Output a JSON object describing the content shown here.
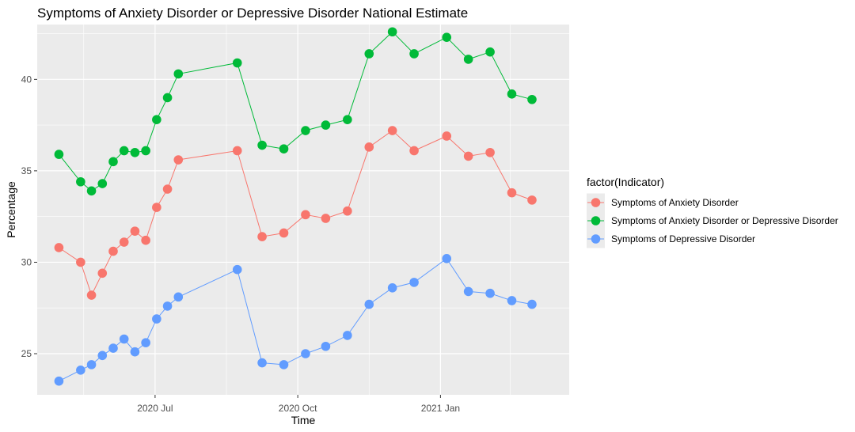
{
  "chart_data": {
    "type": "line",
    "title": "Symptoms of Anxiety Disorder or Depressive Disorder National Estimate",
    "xlabel": "Time",
    "ylabel": "Percentage",
    "x_ticks": [
      {
        "date": "2020-07-01",
        "label": "2020 Jul"
      },
      {
        "date": "2020-10-01",
        "label": "2020 Oct"
      },
      {
        "date": "2021-01-01",
        "label": "2021 Jan"
      }
    ],
    "x_minor_ticks": [
      "2020-05-16",
      "2020-08-16",
      "2020-11-16",
      "2021-02-15"
    ],
    "xlim": [
      "2020-04-16",
      "2021-03-25"
    ],
    "y_ticks": [
      25,
      30,
      35,
      40
    ],
    "ylim": [
      22.75,
      43.0
    ],
    "grid": true,
    "legend": {
      "title": "factor(Indicator)",
      "position": "right"
    },
    "x": [
      "2020-04-30",
      "2020-05-14",
      "2020-05-21",
      "2020-05-28",
      "2020-06-04",
      "2020-06-11",
      "2020-06-18",
      "2020-06-25",
      "2020-07-02",
      "2020-07-09",
      "2020-07-16",
      "2020-08-23",
      "2020-09-08",
      "2020-09-22",
      "2020-10-06",
      "2020-10-19",
      "2020-11-02",
      "2020-11-16",
      "2020-12-01",
      "2020-12-15",
      "2021-01-05",
      "2021-01-19",
      "2021-02-02",
      "2021-02-16",
      "2021-03-01"
    ],
    "series": [
      {
        "name": "Symptoms of Anxiety Disorder",
        "color": "#f8766d",
        "values": [
          30.8,
          30.0,
          28.2,
          29.4,
          30.6,
          31.1,
          31.7,
          31.2,
          33.0,
          34.0,
          35.6,
          36.1,
          31.4,
          31.6,
          32.6,
          32.4,
          32.8,
          36.3,
          37.2,
          36.1,
          36.9,
          35.8,
          36.0,
          33.8,
          33.4
        ]
      },
      {
        "name": "Symptoms of Anxiety Disorder or Depressive Disorder",
        "color": "#00ba38",
        "values": [
          35.9,
          34.4,
          33.9,
          34.3,
          35.5,
          36.1,
          36.0,
          36.1,
          37.8,
          39.0,
          40.3,
          40.9,
          36.4,
          36.2,
          37.2,
          37.5,
          37.8,
          41.4,
          42.6,
          41.4,
          42.3,
          41.1,
          41.5,
          39.2,
          38.9
        ]
      },
      {
        "name": "Symptoms of Depressive Disorder",
        "color": "#619cff",
        "values": [
          23.5,
          24.1,
          24.4,
          24.9,
          25.3,
          25.8,
          25.1,
          25.6,
          26.9,
          27.6,
          28.1,
          29.6,
          24.5,
          24.4,
          25.0,
          25.4,
          26.0,
          27.7,
          28.6,
          28.9,
          30.2,
          28.4,
          28.3,
          27.9,
          27.7
        ]
      }
    ]
  }
}
